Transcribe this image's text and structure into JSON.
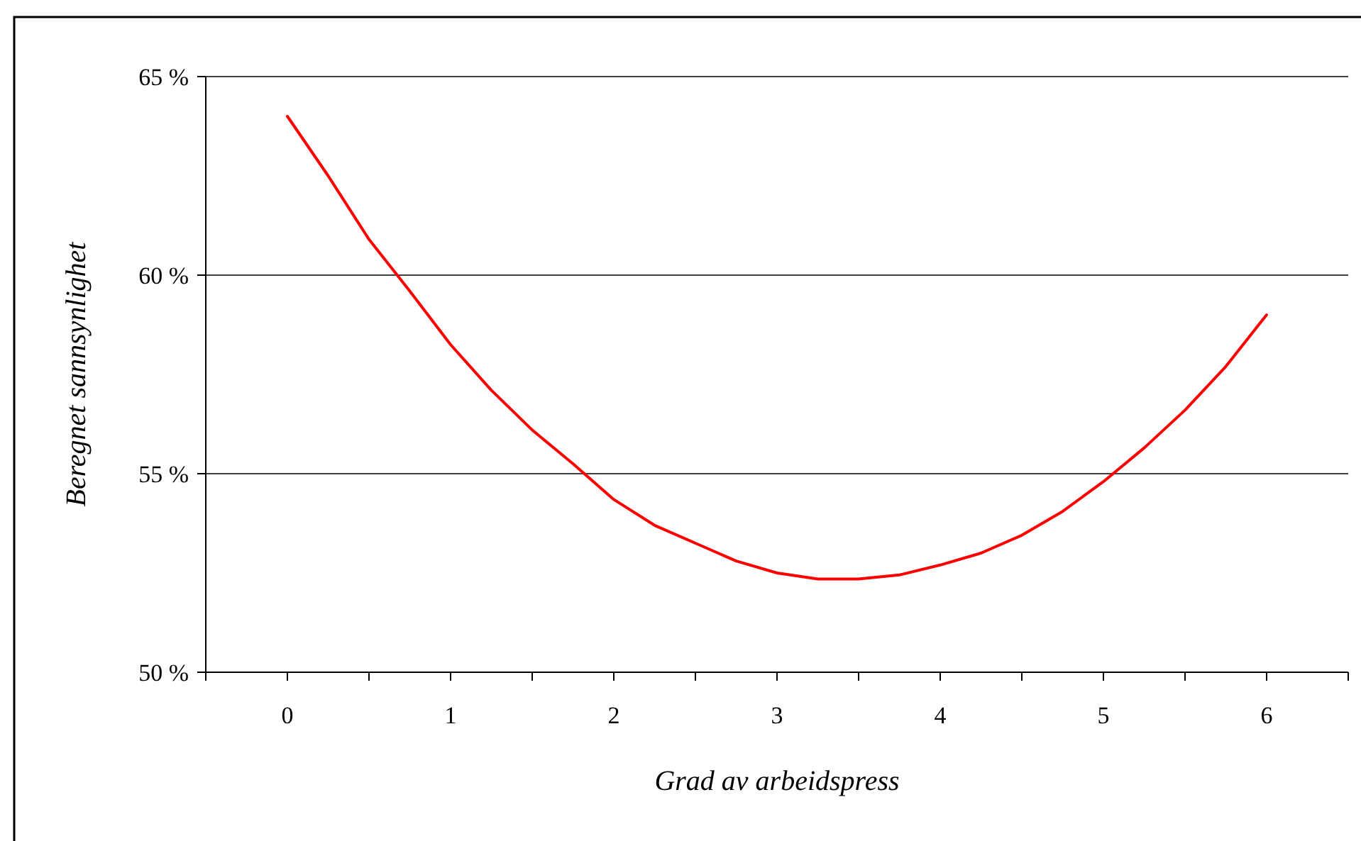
{
  "chart_data": {
    "type": "line",
    "xlabel": "Grad av arbeidspress",
    "ylabel": "Beregnet sannsynlighet",
    "x": [
      0,
      0.25,
      0.5,
      0.75,
      1,
      1.25,
      1.5,
      1.75,
      2,
      2.25,
      2.5,
      2.75,
      3,
      3.25,
      3.5,
      3.75,
      4,
      4.25,
      4.5,
      4.75,
      5,
      5.25,
      5.5,
      5.75,
      6
    ],
    "series": [
      {
        "color": "#ff0000",
        "values": [
          64.0,
          62.5,
          60.9,
          59.6,
          58.25,
          57.1,
          56.1,
          55.25,
          54.35,
          53.7,
          53.25,
          52.8,
          52.5,
          52.35,
          52.35,
          52.45,
          52.7,
          53.0,
          53.45,
          54.05,
          54.8,
          55.65,
          56.6,
          57.7,
          59.0
        ]
      }
    ],
    "xlim": [
      -0.5,
      6.5
    ],
    "xticks": [
      {
        "value": -0.5,
        "label": null
      },
      0,
      {
        "value": 0.5,
        "label": null
      },
      1,
      {
        "value": 1.5,
        "label": null
      },
      2,
      {
        "value": 2.5,
        "label": null
      },
      3,
      {
        "value": 3.5,
        "label": null
      },
      4,
      {
        "value": 4.5,
        "label": null
      },
      5,
      {
        "value": 5.5,
        "label": null
      },
      6,
      {
        "value": 6.5,
        "label": null
      }
    ],
    "ylim": [
      50,
      65
    ],
    "yticks": [
      {
        "value": 50,
        "label": "50 %"
      },
      {
        "value": 55,
        "label": "55 %"
      },
      {
        "value": 60,
        "label": "60 %"
      },
      {
        "value": 65,
        "label": "65 %"
      }
    ],
    "grid": "y",
    "marker": "none",
    "line_style": "solid"
  }
}
